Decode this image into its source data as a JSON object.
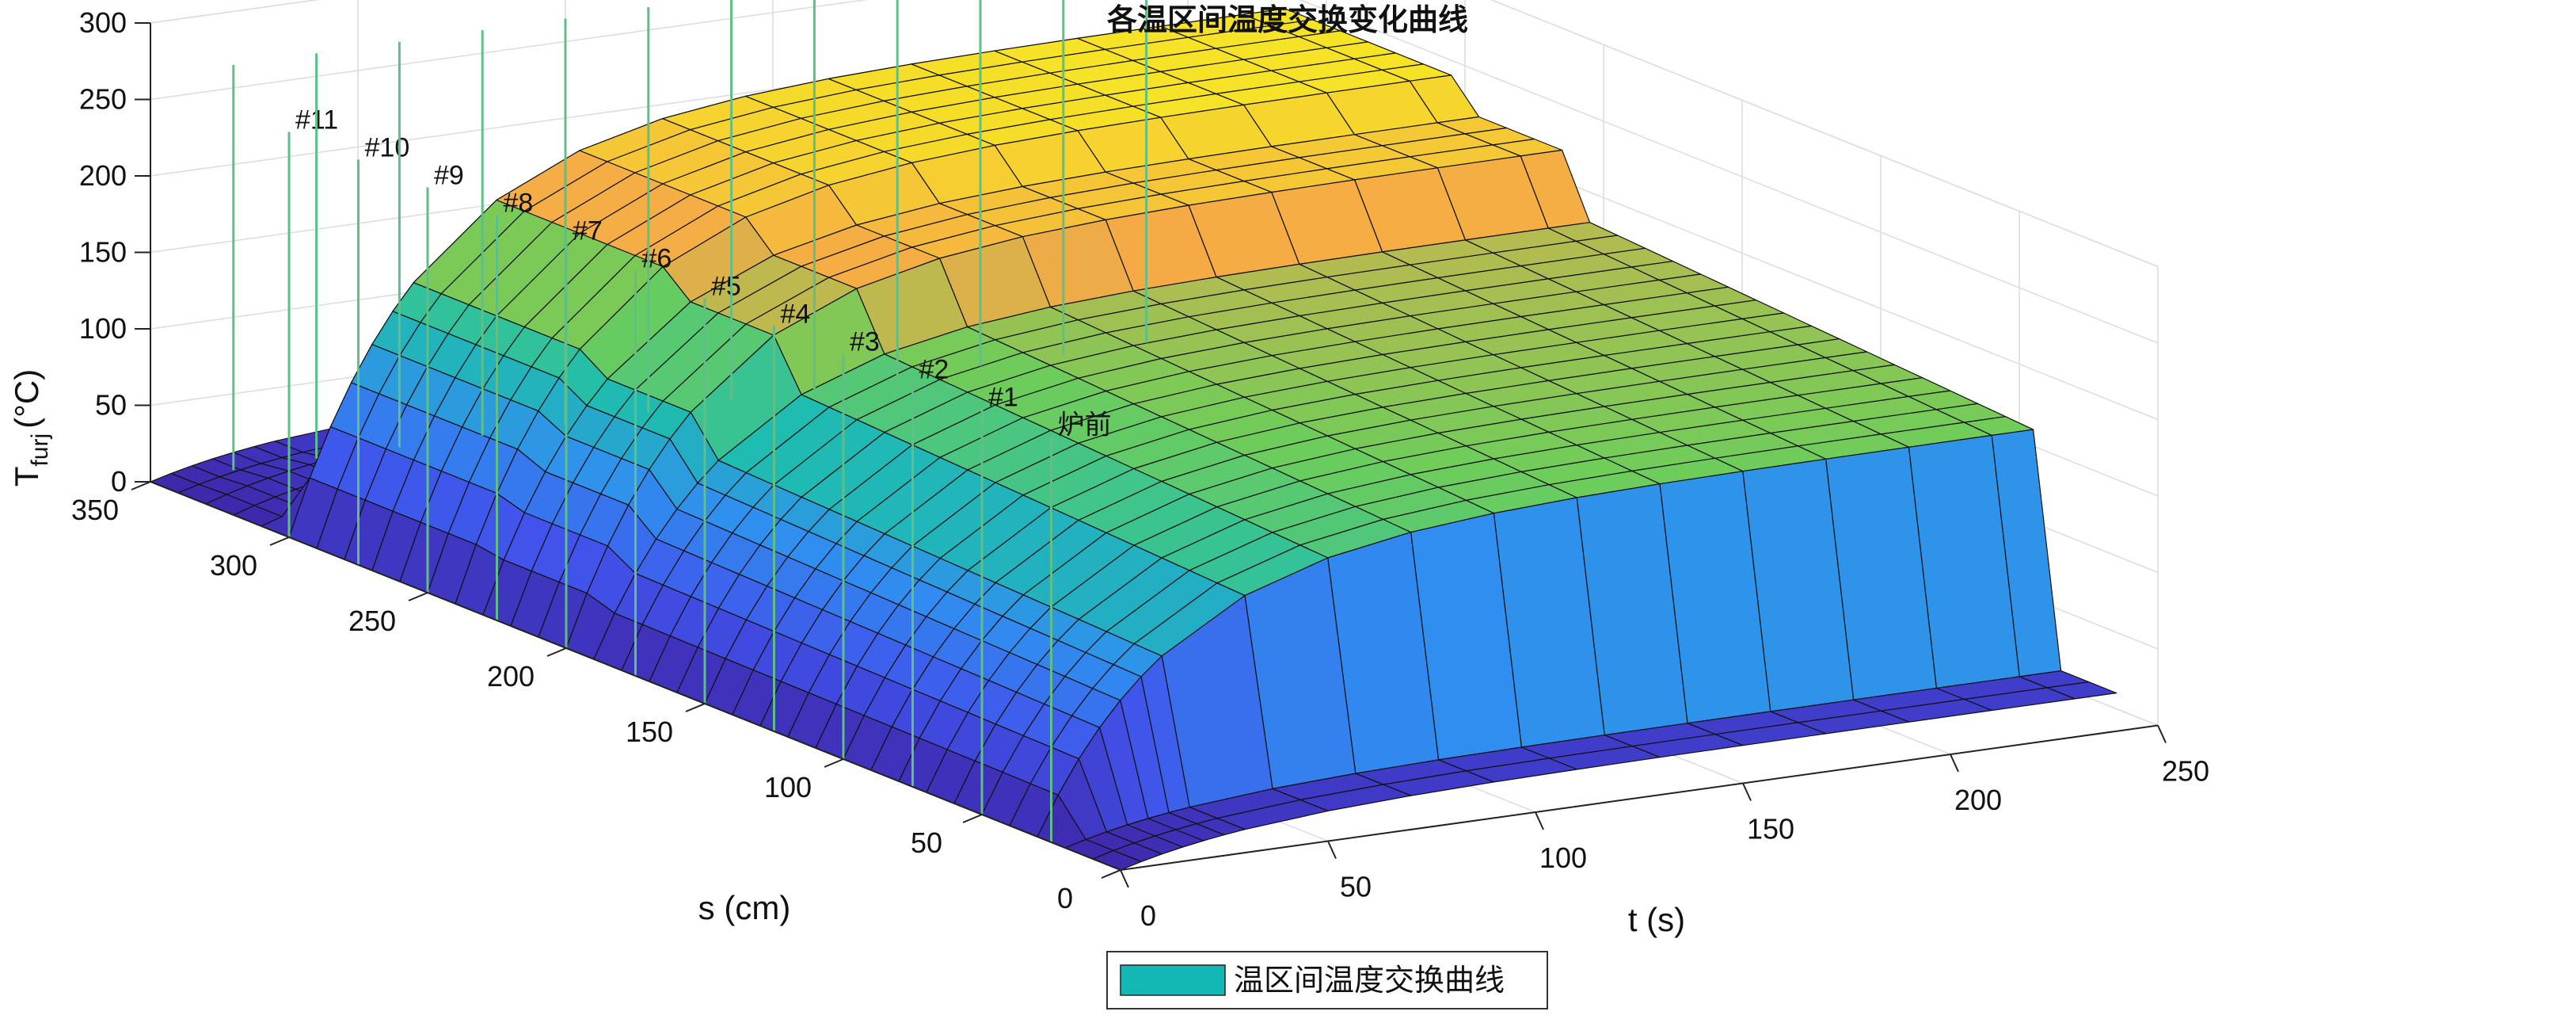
{
  "chart_data": {
    "type": "surface",
    "title": "各温区间温度交换变化曲线",
    "xlabel": "t (s)",
    "ylabel": "s (cm)",
    "zlabel_main": "T",
    "zlabel_sub": "furj",
    "zlabel_unit": "(°C)",
    "xlim": [
      0,
      250
    ],
    "ylim": [
      0,
      350
    ],
    "zlim": [
      0,
      300
    ],
    "xticks": [
      "0",
      "50",
      "100",
      "150",
      "200",
      "250"
    ],
    "yticks": [
      "0",
      "50",
      "100",
      "150",
      "200",
      "250",
      "300",
      "350"
    ],
    "zticks": [
      "0",
      "50",
      "100",
      "150",
      "200",
      "250",
      "300"
    ],
    "grid": true,
    "legend": {
      "position": "bottom-center",
      "entries": [
        "温区间温度交换曲线"
      ]
    },
    "zones": [
      {
        "label": "炉前",
        "s": 25
      },
      {
        "label": "#1",
        "s": 50
      },
      {
        "label": "#2",
        "s": 75
      },
      {
        "label": "#3",
        "s": 100
      },
      {
        "label": "#4",
        "s": 125
      },
      {
        "label": "#5",
        "s": 150
      },
      {
        "label": "#6",
        "s": 175
      },
      {
        "label": "#7",
        "s": 200
      },
      {
        "label": "#8",
        "s": 225
      },
      {
        "label": "#9",
        "s": 250
      },
      {
        "label": "#10",
        "s": 275
      },
      {
        "label": "#11",
        "s": 300
      }
    ],
    "surface_zone_temps": [
      25,
      175,
      195,
      235,
      255
    ],
    "surface_zone_edges_s": [
      0,
      25,
      190,
      230,
      300,
      330,
      350
    ],
    "colors": {
      "low": "#3e26a8",
      "mid_blue": "#3a6cf7",
      "cyan": "#1ec1b0",
      "green": "#86cf56",
      "orange": "#f5a946",
      "yellow": "#f6f01b",
      "legend_swatch": "#13b8b4",
      "zone_line": "#5fbf86",
      "grid": "#dcdcdc"
    }
  }
}
